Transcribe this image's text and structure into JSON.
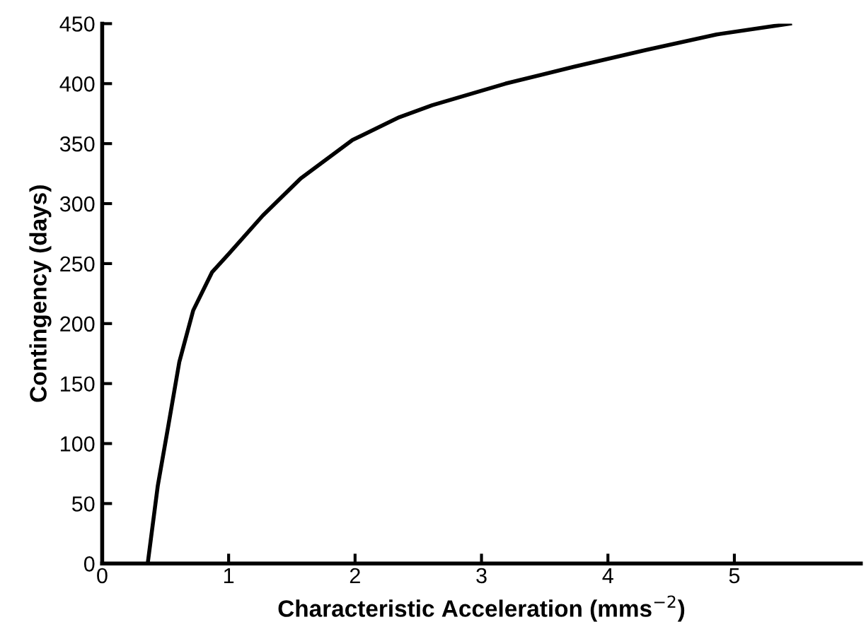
{
  "chart_data": {
    "type": "line",
    "xlabel": "Characteristic Acceleration (mms$^{−2}$)",
    "ylabel": "Contingency (days)",
    "xlim": [
      0,
      6
    ],
    "ylim": [
      0,
      450
    ],
    "xticks": [
      0,
      1,
      2,
      3,
      4,
      5
    ],
    "yticks": [
      0,
      50,
      100,
      150,
      200,
      250,
      300,
      350,
      400,
      450
    ],
    "grid": false,
    "marker": "none",
    "line_style": "solid",
    "series": [
      {
        "color": "#000000",
        "x": [
          0.36,
          0.44,
          0.52,
          0.61,
          0.72,
          0.87,
          1.0,
          1.27,
          1.57,
          1.98,
          2.35,
          2.61,
          3.19,
          3.73,
          4.3,
          4.86,
          5.44
        ],
        "values": [
          0,
          65,
          113,
          168,
          211,
          243,
          258,
          290,
          321,
          353,
          372,
          382,
          400,
          414,
          428,
          441,
          450
        ]
      }
    ]
  }
}
